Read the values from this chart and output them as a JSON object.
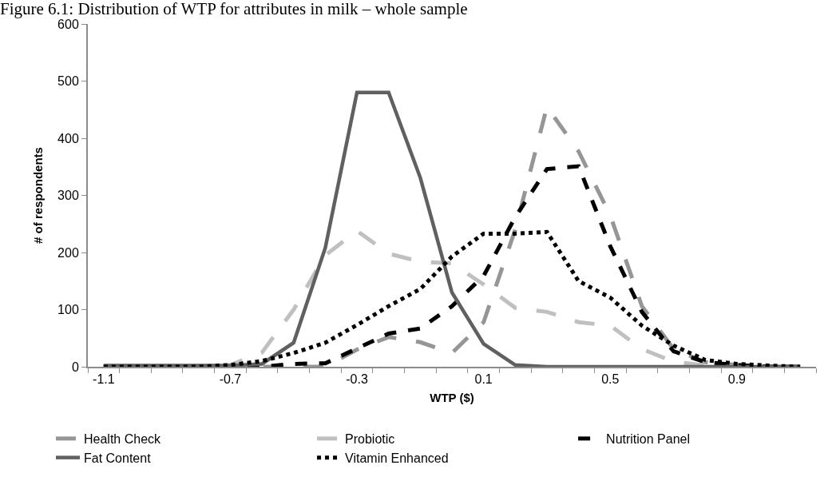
{
  "chart_data": {
    "type": "line",
    "title": "Figure 6.1: Distribution of WTP for attributes in milk – whole sample",
    "xlabel": "WTP ($)",
    "ylabel": "# of respondents",
    "categories": [
      "-1.1",
      null,
      null,
      null,
      "-0.7",
      null,
      null,
      null,
      "-0.3",
      null,
      null,
      null,
      "0.1",
      null,
      null,
      null,
      "0.5",
      null,
      null,
      null,
      "0.9",
      null,
      null
    ],
    "ylim": [
      0,
      600
    ],
    "yticks": [
      0,
      100,
      200,
      300,
      400,
      500,
      600
    ],
    "legend": "bottom",
    "marker": "none",
    "series": [
      {
        "name": "Health Check",
        "color": "#969696",
        "line_style": "dashed",
        "values": [
          0,
          0,
          0,
          0,
          0,
          0,
          0,
          0,
          30,
          52,
          43,
          24,
          78,
          240,
          455,
          377,
          265,
          106,
          31,
          8,
          3,
          0,
          0
        ]
      },
      {
        "name": "Probiotic",
        "color": "#c0c0c0",
        "line_style": "dashed",
        "values": [
          0,
          0,
          0,
          0,
          3,
          25,
          100,
          195,
          238,
          198,
          184,
          181,
          144,
          103,
          96,
          78,
          72,
          31,
          9,
          2,
          0,
          0,
          0
        ]
      },
      {
        "name": "Nutrition Panel",
        "color": "#000000",
        "line_style": "dashed",
        "values": [
          0,
          0,
          0,
          0,
          0,
          0,
          5,
          6,
          32,
          58,
          67,
          106,
          159,
          262,
          346,
          351,
          211,
          96,
          27,
          8,
          3,
          0,
          0
        ]
      },
      {
        "name": "Fat Content",
        "color": "#606060",
        "line_style": "solid",
        "values": [
          2,
          2,
          2,
          2,
          2,
          5,
          42,
          208,
          480,
          480,
          331,
          130,
          40,
          3,
          0,
          0,
          0,
          0,
          0,
          0,
          0,
          0,
          0
        ]
      },
      {
        "name": "Vitamin Enhanced",
        "color": "#000000",
        "line_style": "dotted",
        "values": [
          0,
          0,
          0,
          0,
          3,
          10,
          24,
          42,
          73,
          106,
          136,
          193,
          233,
          233,
          236,
          150,
          121,
          72,
          37,
          12,
          5,
          2,
          0
        ]
      }
    ]
  }
}
